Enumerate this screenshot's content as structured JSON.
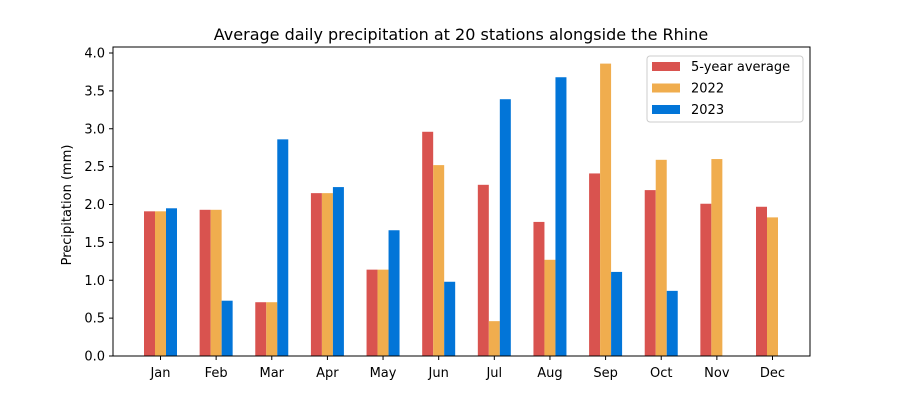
{
  "chart_data": {
    "type": "bar",
    "title": "Average daily precipitation at 20 stations alongside the Rhine",
    "xlabel": "",
    "ylabel": "Precipitation (mm)",
    "ylim": [
      0,
      4.05
    ],
    "yticks": [
      "0.0",
      "0.5",
      "1.0",
      "1.5",
      "2.0",
      "2.5",
      "3.0",
      "3.5",
      "4.0"
    ],
    "ytick_values": [
      0,
      0.5,
      1.0,
      1.5,
      2.0,
      2.5,
      3.0,
      3.5,
      4.0
    ],
    "grid": false,
    "legend_position": "top-right",
    "categories": [
      "Jan",
      "Feb",
      "Mar",
      "Apr",
      "May",
      "Jun",
      "Jul",
      "Aug",
      "Sep",
      "Oct",
      "Nov",
      "Dec"
    ],
    "series": [
      {
        "name": "5-year average",
        "color": "#d9534f",
        "values": [
          1.91,
          1.93,
          0.71,
          2.15,
          1.14,
          2.96,
          2.26,
          1.77,
          2.41,
          2.19,
          2.01,
          1.97
        ]
      },
      {
        "name": "2022",
        "color": "#f0ad4e",
        "values": [
          1.91,
          1.93,
          0.71,
          2.15,
          1.14,
          2.52,
          0.46,
          1.27,
          3.86,
          2.59,
          2.6,
          1.83
        ]
      },
      {
        "name": "2023",
        "color": "#0275d8",
        "values": [
          1.95,
          0.73,
          2.86,
          2.23,
          1.66,
          0.98,
          3.39,
          3.68,
          1.11,
          0.86,
          null,
          null
        ]
      }
    ]
  }
}
